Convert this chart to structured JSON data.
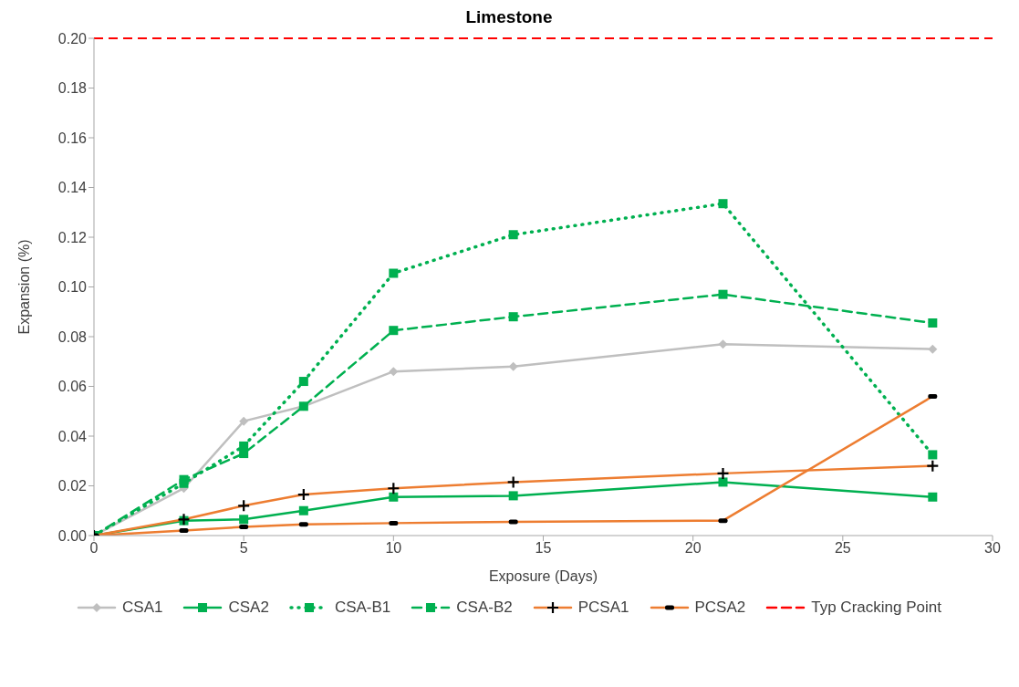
{
  "chart_data": {
    "type": "line",
    "title": "Limestone",
    "xlabel": "Exposure (Days)",
    "ylabel": "Expansion (%)",
    "x": [
      0,
      3,
      5,
      7,
      10,
      14,
      21,
      28
    ],
    "series": [
      {
        "name": "CSA1",
        "color": "#bfbfbf",
        "marker": "diamond",
        "line_style": "solid",
        "values": [
          0,
          0.019,
          0.046,
          0.052,
          0.066,
          0.068,
          0.077,
          0.075
        ]
      },
      {
        "name": "CSA2",
        "color": "#00b050",
        "marker": "square",
        "line_style": "solid",
        "values": [
          0,
          0.006,
          0.0065,
          0.01,
          0.0155,
          0.016,
          0.0215,
          0.0155
        ]
      },
      {
        "name": "CSA-B1",
        "color": "#00b050",
        "marker": "square",
        "line_style": "dotted",
        "values": [
          0,
          0.021,
          0.036,
          0.062,
          0.1055,
          0.121,
          0.1335,
          0.0325
        ]
      },
      {
        "name": "CSA-B2",
        "color": "#00b050",
        "marker": "square",
        "line_style": "dashed",
        "values": [
          0,
          0.0225,
          0.033,
          0.052,
          0.0825,
          0.088,
          0.097,
          0.0855
        ]
      },
      {
        "name": "PCSA1",
        "color": "#ed7d31",
        "marker": "cross",
        "line_style": "solid",
        "values": [
          0,
          0.0065,
          0.012,
          0.0165,
          0.019,
          0.0215,
          0.025,
          0.028
        ]
      },
      {
        "name": "PCSA2",
        "color": "#ed7d31",
        "marker": "square",
        "line_style": "solid",
        "values": [
          0,
          0.002,
          0.0035,
          0.0045,
          0.005,
          0.0055,
          0.006,
          0.056
        ]
      }
    ],
    "ref_lines": [
      {
        "axis": "y",
        "value": 0.2,
        "label": "Typ Cracking Point",
        "color": "#ff0000",
        "line_style": "dashed"
      }
    ],
    "xlim": [
      0,
      30
    ],
    "xticks": [
      0,
      5,
      10,
      15,
      20,
      25,
      30
    ],
    "ylim": [
      0,
      0.2
    ],
    "yticks": [
      {
        "value": 0,
        "label": "0.00"
      },
      {
        "value": 0.02,
        "label": "0.02"
      },
      {
        "value": 0.04,
        "label": "0.04"
      },
      {
        "value": 0.06,
        "label": "0.06"
      },
      {
        "value": 0.08,
        "label": "0.08"
      },
      {
        "value": 0.1,
        "label": "0.10"
      },
      {
        "value": 0.12,
        "label": "0.12"
      },
      {
        "value": 0.14,
        "label": "0.14"
      },
      {
        "value": 0.16,
        "label": "0.16"
      },
      {
        "value": 0.18,
        "label": "0.18"
      },
      {
        "value": 0.2,
        "label": "0.20"
      }
    ],
    "grid": false,
    "legend": "bottom"
  }
}
